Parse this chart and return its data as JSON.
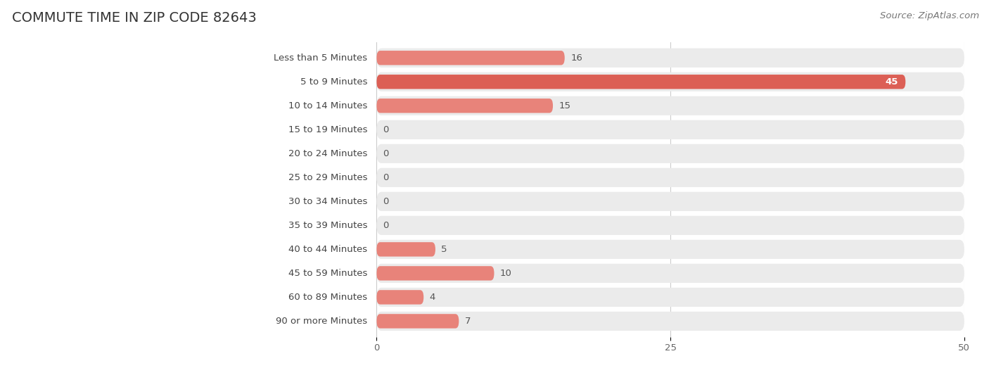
{
  "title": "COMMUTE TIME IN ZIP CODE 82643",
  "source": "Source: ZipAtlas.com",
  "categories": [
    "Less than 5 Minutes",
    "5 to 9 Minutes",
    "10 to 14 Minutes",
    "15 to 19 Minutes",
    "20 to 24 Minutes",
    "25 to 29 Minutes",
    "30 to 34 Minutes",
    "35 to 39 Minutes",
    "40 to 44 Minutes",
    "45 to 59 Minutes",
    "60 to 89 Minutes",
    "90 or more Minutes"
  ],
  "values": [
    16,
    45,
    15,
    0,
    0,
    0,
    0,
    0,
    5,
    10,
    4,
    7
  ],
  "bar_color_normal": "#E8837A",
  "bar_color_highlight": "#DC5F55",
  "bar_bg_color": "#EBEBEB",
  "highlight_index": 1,
  "xlim": [
    0,
    50
  ],
  "xticks": [
    0,
    25,
    50
  ],
  "background_color": "#FFFFFF",
  "title_fontsize": 14,
  "label_fontsize": 9.5,
  "value_fontsize": 9.5,
  "source_fontsize": 9.5
}
